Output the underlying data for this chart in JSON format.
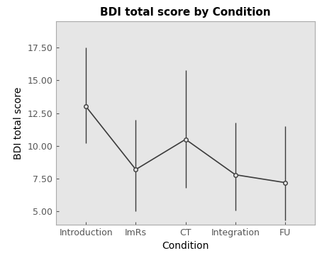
{
  "title": "BDI total score by Condition",
  "xlabel": "Condition",
  "ylabel": "BDI total score",
  "categories": [
    "Introduction",
    "ImRs",
    "CT",
    "Integration",
    "FU"
  ],
  "means": [
    13.0,
    8.2,
    10.5,
    7.8,
    7.2
  ],
  "error_lower": [
    2.8,
    3.2,
    3.7,
    2.7,
    2.9
  ],
  "error_upper": [
    4.5,
    3.8,
    5.3,
    4.0,
    4.3
  ],
  "ylim": [
    4.0,
    19.5
  ],
  "yticks": [
    5.0,
    7.5,
    10.0,
    12.5,
    15.0,
    17.5
  ],
  "plot_bg_color": "#e6e6e6",
  "fig_bg_color": "#ffffff",
  "line_color": "#3c3c3c",
  "marker_color": "#3c3c3c",
  "spine_color": "#aaaaaa",
  "title_fontsize": 11,
  "label_fontsize": 10,
  "tick_fontsize": 9,
  "marker_size": 4,
  "line_width": 1.2,
  "error_line_width": 1.0
}
